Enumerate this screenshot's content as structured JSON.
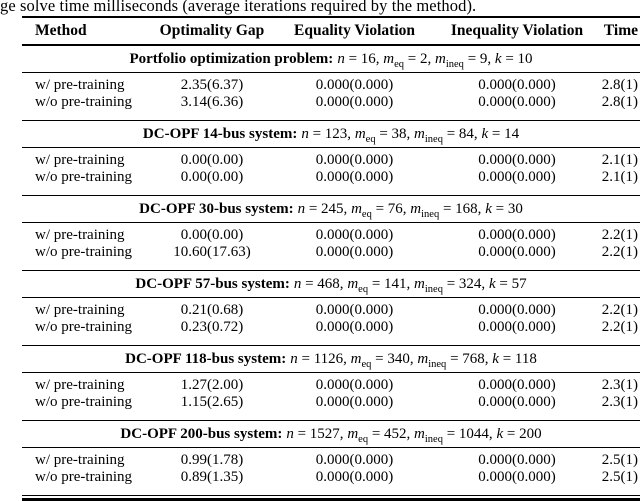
{
  "caption": "ge solve time milliseconds (average iterations required by the method).",
  "table": {
    "columns": {
      "method": "Method",
      "opt_gap": "Optimality Gap",
      "eq_viol": "Equality Violation",
      "ineq_viol": "Inequality Violation",
      "time": "Time"
    },
    "sections": [
      {
        "title": "Portfolio optimization problem:",
        "params": [
          {
            "v": "n",
            "sub": "",
            "rest": " = 16, "
          },
          {
            "v": "m",
            "sub": "eq",
            "rest": " = 2, "
          },
          {
            "v": "m",
            "sub": "ineq",
            "rest": " = 9, "
          },
          {
            "v": "k",
            "sub": "",
            "rest": " = 10"
          }
        ],
        "rows": [
          {
            "method": "w/ pre-training",
            "opt_gap": "2.35(6.37)",
            "eq_viol": "0.000(0.000)",
            "ineq_viol": "0.000(0.000)",
            "time": "2.8(1)"
          },
          {
            "method": "w/o pre-training",
            "opt_gap": "3.14(6.36)",
            "eq_viol": "0.000(0.000)",
            "ineq_viol": "0.000(0.000)",
            "time": "2.8(1)"
          }
        ]
      },
      {
        "title": "DC-OPF 14-bus system:",
        "params": [
          {
            "v": "n",
            "sub": "",
            "rest": " = 123, "
          },
          {
            "v": "m",
            "sub": "eq",
            "rest": " = 38, "
          },
          {
            "v": "m",
            "sub": "ineq",
            "rest": " = 84, "
          },
          {
            "v": "k",
            "sub": "",
            "rest": " = 14"
          }
        ],
        "rows": [
          {
            "method": "w/ pre-training",
            "opt_gap": "0.00(0.00)",
            "eq_viol": "0.000(0.000)",
            "ineq_viol": "0.000(0.000)",
            "time": "2.1(1)"
          },
          {
            "method": "w/o pre-training",
            "opt_gap": "0.00(0.00)",
            "eq_viol": "0.000(0.000)",
            "ineq_viol": "0.000(0.000)",
            "time": "2.1(1)"
          }
        ]
      },
      {
        "title": "DC-OPF 30-bus system:",
        "params": [
          {
            "v": "n",
            "sub": "",
            "rest": " = 245, "
          },
          {
            "v": "m",
            "sub": "eq",
            "rest": " = 76, "
          },
          {
            "v": "m",
            "sub": "ineq",
            "rest": " = 168, "
          },
          {
            "v": "k",
            "sub": "",
            "rest": " = 30"
          }
        ],
        "rows": [
          {
            "method": "w/ pre-training",
            "opt_gap": "0.00(0.00)",
            "eq_viol": "0.000(0.000)",
            "ineq_viol": "0.000(0.000)",
            "time": "2.2(1)"
          },
          {
            "method": "w/o pre-training",
            "opt_gap": "10.60(17.63)",
            "eq_viol": "0.000(0.000)",
            "ineq_viol": "0.000(0.000)",
            "time": "2.2(1)"
          }
        ]
      },
      {
        "title": "DC-OPF 57-bus system:",
        "params": [
          {
            "v": "n",
            "sub": "",
            "rest": " = 468, "
          },
          {
            "v": "m",
            "sub": "eq",
            "rest": " = 141, "
          },
          {
            "v": "m",
            "sub": "ineq",
            "rest": " = 324, "
          },
          {
            "v": "k",
            "sub": "",
            "rest": " = 57"
          }
        ],
        "rows": [
          {
            "method": "w/ pre-training",
            "opt_gap": "0.21(0.68)",
            "eq_viol": "0.000(0.000)",
            "ineq_viol": "0.000(0.000)",
            "time": "2.2(1)"
          },
          {
            "method": "w/o pre-training",
            "opt_gap": "0.23(0.72)",
            "eq_viol": "0.000(0.000)",
            "ineq_viol": "0.000(0.000)",
            "time": "2.2(1)"
          }
        ]
      },
      {
        "title": "DC-OPF 118-bus system:",
        "params": [
          {
            "v": "n",
            "sub": "",
            "rest": " = 1126, "
          },
          {
            "v": "m",
            "sub": "eq",
            "rest": " = 340, "
          },
          {
            "v": "m",
            "sub": "ineq",
            "rest": " = 768, "
          },
          {
            "v": "k",
            "sub": "",
            "rest": " = 118"
          }
        ],
        "rows": [
          {
            "method": "w/ pre-training",
            "opt_gap": "1.27(2.00)",
            "eq_viol": "0.000(0.000)",
            "ineq_viol": "0.000(0.000)",
            "time": "2.3(1)"
          },
          {
            "method": "w/o pre-training",
            "opt_gap": "1.15(2.65)",
            "eq_viol": "0.000(0.000)",
            "ineq_viol": "0.000(0.000)",
            "time": "2.3(1)"
          }
        ]
      },
      {
        "title": "DC-OPF 200-bus system:",
        "params": [
          {
            "v": "n",
            "sub": "",
            "rest": " = 1527, "
          },
          {
            "v": "m",
            "sub": "eq",
            "rest": " = 452, "
          },
          {
            "v": "m",
            "sub": "ineq",
            "rest": " = 1044, "
          },
          {
            "v": "k",
            "sub": "",
            "rest": " = 200"
          }
        ],
        "rows": [
          {
            "method": "w/ pre-training",
            "opt_gap": "0.99(1.78)",
            "eq_viol": "0.000(0.000)",
            "ineq_viol": "0.000(0.000)",
            "time": "2.5(1)"
          },
          {
            "method": "w/o pre-training",
            "opt_gap": "0.89(1.35)",
            "eq_viol": "0.000(0.000)",
            "ineq_viol": "0.000(0.000)",
            "time": "2.5(1)"
          }
        ]
      }
    ]
  }
}
